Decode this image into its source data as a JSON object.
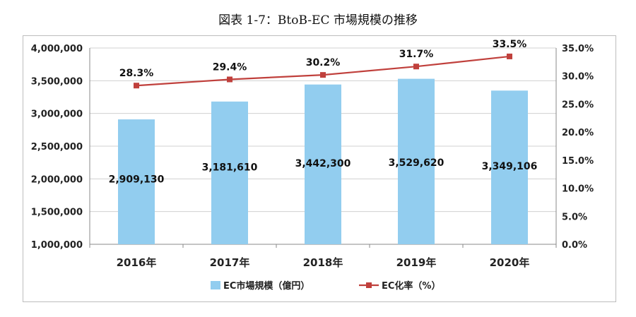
{
  "title": "図表 1-7：BtoB-EC 市場規模の推移",
  "colors": {
    "bar": "#92CDEF",
    "line": "#C0403C",
    "grid": "#D0D0D0",
    "axis": "#888888"
  },
  "chart_data": {
    "type": "bar+line",
    "categories": [
      "2016年",
      "2017年",
      "2018年",
      "2019年",
      "2020年"
    ],
    "series": [
      {
        "name": "EC市場規模（億円）",
        "type": "bar",
        "axis": "left",
        "values": [
          2909130,
          3181610,
          3442300,
          3529620,
          3349106
        ],
        "labels": [
          "2,909,130",
          "3,181,610",
          "3,442,300",
          "3,529,620",
          "3,349,106"
        ]
      },
      {
        "name": "EC化率（%）",
        "type": "line",
        "axis": "right",
        "values": [
          28.3,
          29.4,
          30.2,
          31.7,
          33.5
        ],
        "labels": [
          "28.3%",
          "29.4%",
          "30.2%",
          "31.7%",
          "33.5%"
        ]
      }
    ],
    "y_left": {
      "lim": [
        1000000,
        4000000
      ],
      "ticks": [
        "1,000,000",
        "1,500,000",
        "2,000,000",
        "2,500,000",
        "3,000,000",
        "3,500,000",
        "4,000,000"
      ],
      "tick_values": [
        1000000,
        1500000,
        2000000,
        2500000,
        3000000,
        3500000,
        4000000
      ]
    },
    "y_right": {
      "lim": [
        0,
        35
      ],
      "ticks": [
        "0.0%",
        "5.0%",
        "10.0%",
        "15.0%",
        "20.0%",
        "25.0%",
        "30.0%",
        "35.0%"
      ],
      "tick_values": [
        0,
        5,
        10,
        15,
        20,
        25,
        30,
        35
      ]
    },
    "grid": true,
    "legend_position": "bottom"
  }
}
